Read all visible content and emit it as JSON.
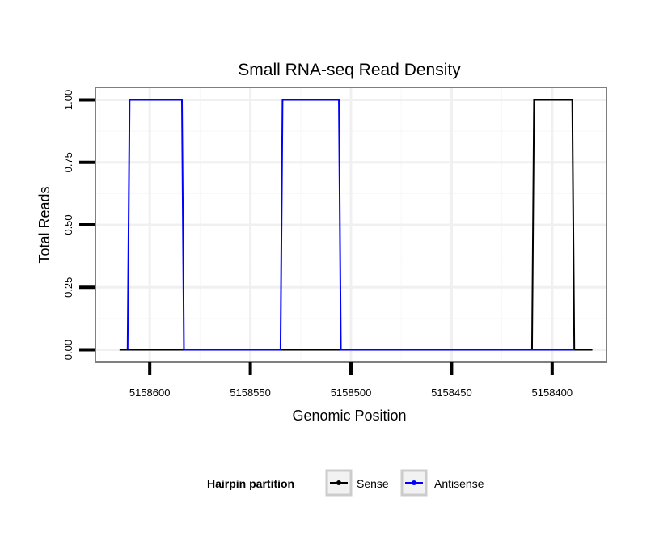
{
  "chart_data": {
    "type": "line",
    "title": "Small RNA-seq Read Density",
    "xlabel": "Genomic Position",
    "ylabel": "Total Reads",
    "xlim": [
      5158627,
      5158373
    ],
    "ylim": [
      -0.05,
      1.05
    ],
    "x_reversed": true,
    "x_ticks": [
      5158600,
      5158550,
      5158500,
      5158450,
      5158400
    ],
    "x_tick_labels": [
      "5158600",
      "5158550",
      "5158500",
      "5158450",
      "5158400"
    ],
    "y_ticks": [
      0.0,
      0.25,
      0.5,
      0.75,
      1.0
    ],
    "y_tick_labels": [
      "0.00",
      "0.25",
      "0.50",
      "0.75",
      "1.00"
    ],
    "grid": true,
    "legend": {
      "title": "Hairpin partition",
      "position": "bottom",
      "entries": [
        "Sense",
        "Antisense"
      ]
    },
    "series": [
      {
        "name": "Sense",
        "color": "#000000",
        "x": [
          5158615,
          5158410,
          5158409,
          5158390,
          5158389,
          5158380
        ],
        "y": [
          0,
          0,
          1,
          1,
          0,
          0
        ]
      },
      {
        "name": "Antisense",
        "color": "#0000ff",
        "x": [
          5158611,
          5158610,
          5158584,
          5158583,
          5158535,
          5158534,
          5158506,
          5158505,
          5158410,
          5158389
        ],
        "y": [
          0,
          1,
          1,
          0,
          0,
          1,
          1,
          0,
          0,
          0
        ]
      }
    ]
  }
}
